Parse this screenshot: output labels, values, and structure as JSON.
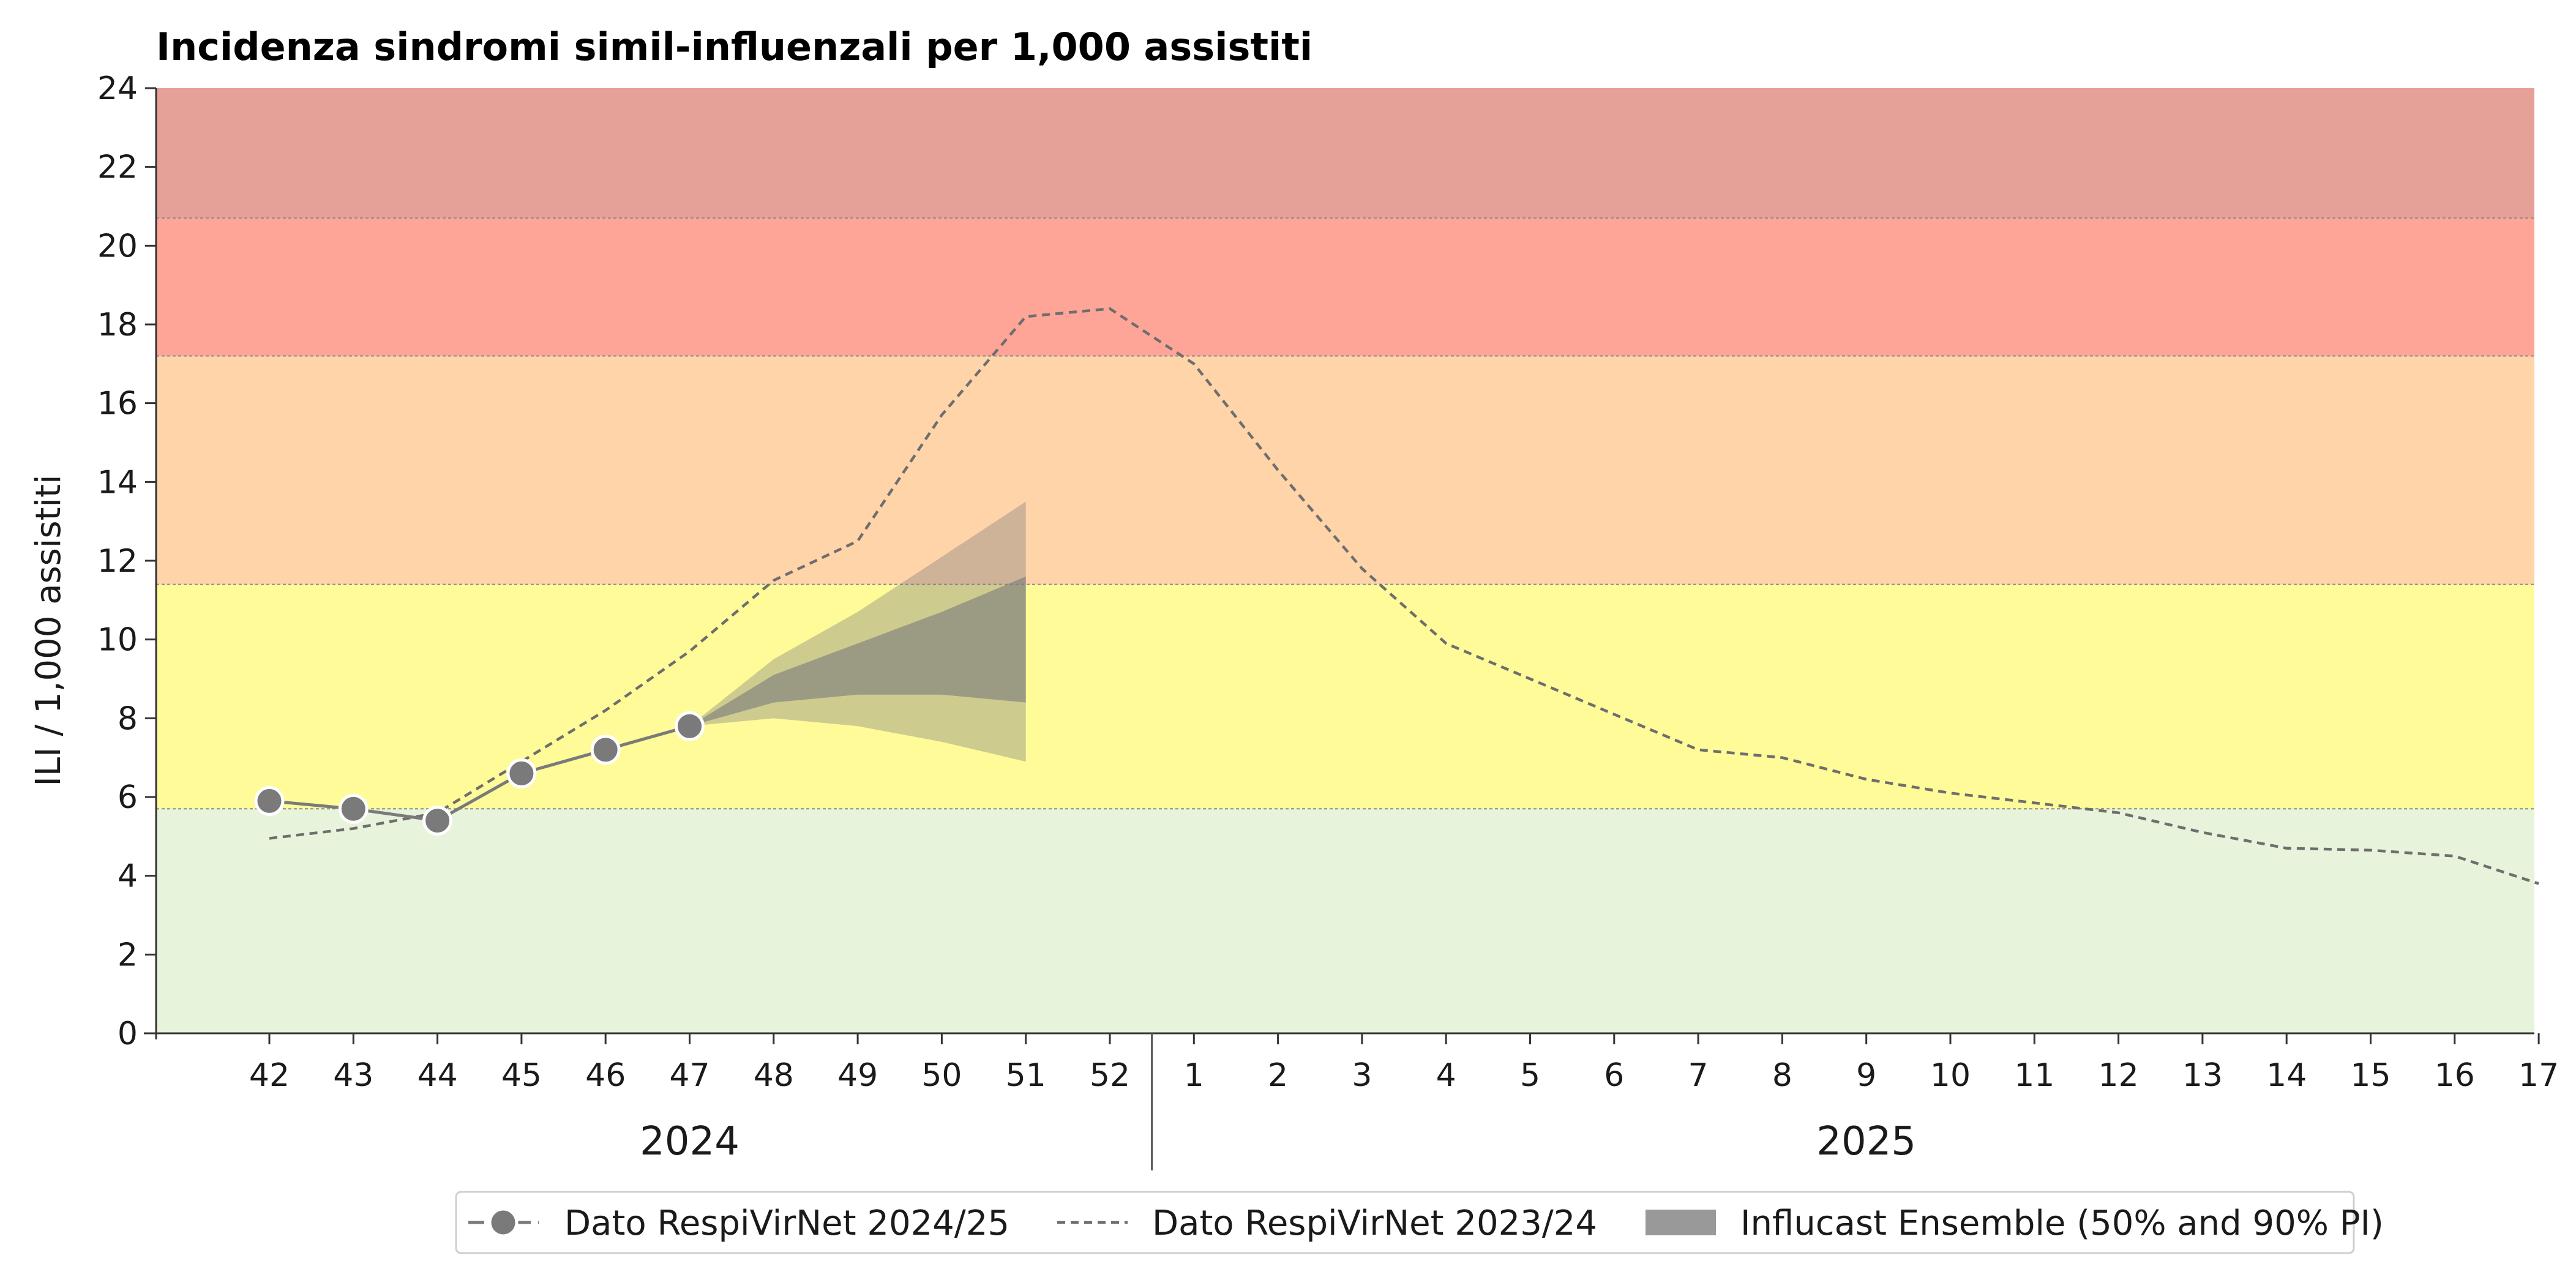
{
  "chart_data": {
    "type": "line",
    "title": "Incidenza sindromi simil-influenzali per 1,000 assistiti",
    "ylabel": "ILI / 1,000 assistiti",
    "xlabel": "",
    "ylim": [
      0,
      24
    ],
    "yticks": [
      "0",
      "2",
      "4",
      "6",
      "8",
      "10",
      "12",
      "14",
      "16",
      "18",
      "20",
      "22",
      "24"
    ],
    "x_weeks": [
      "42",
      "43",
      "44",
      "45",
      "46",
      "47",
      "48",
      "49",
      "50",
      "51",
      "52",
      "1",
      "2",
      "3",
      "4",
      "5",
      "6",
      "7",
      "8",
      "9",
      "10",
      "11",
      "12",
      "13",
      "14",
      "15",
      "16",
      "17"
    ],
    "year_groups": [
      {
        "label": "2024",
        "from_week_index": 0,
        "to_week_index": 10
      },
      {
        "label": "2025",
        "from_week_index": 11,
        "to_week_index": 27
      }
    ],
    "intensity_bands": [
      {
        "from": 0,
        "to": 5.7,
        "color": "#e7f3da"
      },
      {
        "from": 5.7,
        "to": 11.4,
        "color": "#fefb98"
      },
      {
        "from": 11.4,
        "to": 17.2,
        "color": "#ffd4a9"
      },
      {
        "from": 17.2,
        "to": 20.7,
        "color": "#ffa598"
      },
      {
        "from": 20.7,
        "to": 24,
        "color": "#e5a098"
      }
    ],
    "series": [
      {
        "name": "Dato RespiVirNet 2024/25",
        "style": "line-markers",
        "color": "#7a7a7a",
        "points": [
          {
            "week": "42",
            "y": 5.9
          },
          {
            "week": "43",
            "y": 5.7
          },
          {
            "week": "44",
            "y": 5.4
          },
          {
            "week": "45",
            "y": 6.6
          },
          {
            "week": "46",
            "y": 7.2
          },
          {
            "week": "47",
            "y": 7.8
          }
        ]
      },
      {
        "name": "Dato RespiVirNet 2023/24",
        "style": "dashed",
        "color": "#6e6e6e",
        "points": [
          {
            "week": "42",
            "y": 4.95
          },
          {
            "week": "43",
            "y": 5.2
          },
          {
            "week": "44",
            "y": 5.6
          },
          {
            "week": "45",
            "y": 6.9
          },
          {
            "week": "46",
            "y": 8.2
          },
          {
            "week": "47",
            "y": 9.7
          },
          {
            "week": "48",
            "y": 11.5
          },
          {
            "week": "49",
            "y": 12.5
          },
          {
            "week": "50",
            "y": 15.7
          },
          {
            "week": "51",
            "y": 18.2
          },
          {
            "week": "52",
            "y": 18.4
          },
          {
            "week": "1",
            "y": 17.0
          },
          {
            "week": "2",
            "y": 14.3
          },
          {
            "week": "3",
            "y": 11.8
          },
          {
            "week": "4",
            "y": 9.9
          },
          {
            "week": "5",
            "y": 9.0
          },
          {
            "week": "6",
            "y": 8.1
          },
          {
            "week": "7",
            "y": 7.2
          },
          {
            "week": "8",
            "y": 7.0
          },
          {
            "week": "9",
            "y": 6.45
          },
          {
            "week": "10",
            "y": 6.1
          },
          {
            "week": "11",
            "y": 5.85
          },
          {
            "week": "12",
            "y": 5.6
          },
          {
            "week": "13",
            "y": 5.1
          },
          {
            "week": "14",
            "y": 4.7
          },
          {
            "week": "15",
            "y": 4.65
          },
          {
            "week": "16",
            "y": 4.5
          },
          {
            "week": "17",
            "y": 3.8
          }
        ]
      },
      {
        "name": "Influcast Ensemble (50% and 90% PI)",
        "style": "band",
        "color": "#7d7d7d",
        "weeks": [
          "47",
          "48",
          "49",
          "50",
          "51"
        ],
        "pi90_lower": [
          7.8,
          8.0,
          7.8,
          7.4,
          6.9
        ],
        "pi90_upper": [
          7.8,
          9.5,
          10.7,
          12.1,
          13.5
        ],
        "pi50_lower": [
          7.8,
          8.4,
          8.6,
          8.6,
          8.4
        ],
        "pi50_upper": [
          7.8,
          9.1,
          9.9,
          10.7,
          11.6
        ]
      }
    ],
    "legend": {
      "position": "bottom-center",
      "entries": [
        "Dato RespiVirNet 2024/25",
        "Dato RespiVirNet 2023/24",
        "Influcast Ensemble (50% and 90% PI)"
      ]
    },
    "grid": false
  }
}
